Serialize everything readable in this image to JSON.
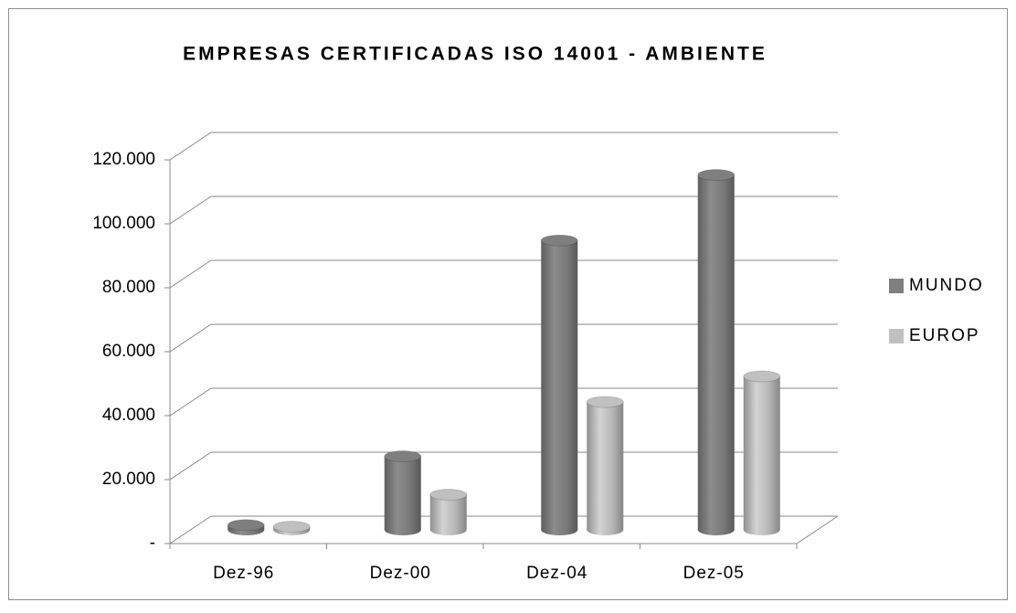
{
  "chart_data": {
    "type": "bar3d",
    "title": "EMPRESAS CERTIFICADAS ISO 14001 - AMBIENTE",
    "categories": [
      "Dez-96",
      "Dez-00",
      "Dez-04",
      "Dez-05"
    ],
    "series": [
      {
        "name": "MUNDO",
        "color": "#7f7f7f",
        "values": [
          1500,
          23000,
          90500,
          111000
        ]
      },
      {
        "name": "EUROP",
        "color": "#c0c0c0",
        "values": [
          1000,
          11000,
          40000,
          48000
        ]
      }
    ],
    "ylim": [
      0,
      120000
    ],
    "yticks": [
      {
        "value": 0,
        "label": "-"
      },
      {
        "value": 20000,
        "label": "20.000"
      },
      {
        "value": 40000,
        "label": "40.000"
      },
      {
        "value": 60000,
        "label": "60.000"
      },
      {
        "value": 80000,
        "label": "80.000"
      },
      {
        "value": 100000,
        "label": "100.000"
      },
      {
        "value": 120000,
        "label": "120.000"
      }
    ],
    "grid": true,
    "legend": "right"
  }
}
